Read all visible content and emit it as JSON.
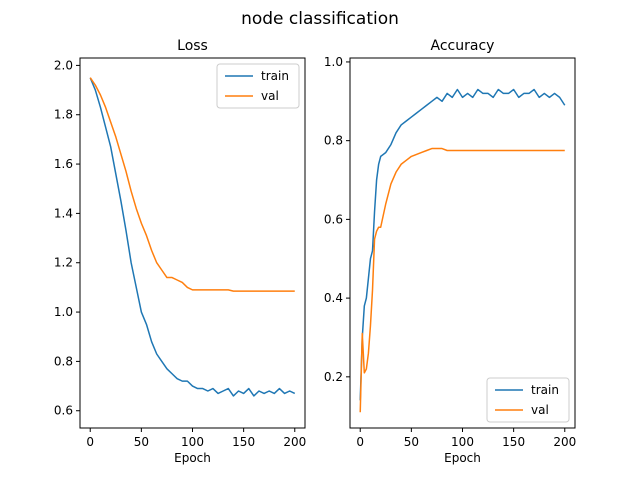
{
  "chart_data": [
    {
      "type": "line",
      "suptitle": "node classification",
      "title": "Loss",
      "xlabel": "Epoch",
      "ylabel": "",
      "xlim": [
        -10,
        210
      ],
      "ylim": [
        0.53,
        2.03
      ],
      "xticks": [
        0,
        50,
        100,
        150,
        200
      ],
      "yticks": [
        0.6,
        0.8,
        1.0,
        1.2,
        1.4,
        1.6,
        1.8,
        2.0
      ],
      "legend": "top-right",
      "series": [
        {
          "name": "train",
          "color": "#1f77b4",
          "x": [
            0,
            5,
            10,
            15,
            20,
            25,
            30,
            35,
            40,
            45,
            50,
            55,
            60,
            65,
            70,
            75,
            80,
            85,
            90,
            95,
            100,
            105,
            110,
            115,
            120,
            125,
            130,
            135,
            140,
            145,
            150,
            155,
            160,
            165,
            170,
            175,
            180,
            185,
            190,
            195,
            200
          ],
          "values": [
            1.95,
            1.9,
            1.83,
            1.75,
            1.67,
            1.56,
            1.45,
            1.33,
            1.2,
            1.1,
            1.0,
            0.95,
            0.88,
            0.83,
            0.8,
            0.77,
            0.75,
            0.73,
            0.72,
            0.72,
            0.7,
            0.69,
            0.69,
            0.68,
            0.69,
            0.67,
            0.68,
            0.69,
            0.66,
            0.68,
            0.67,
            0.69,
            0.66,
            0.68,
            0.67,
            0.68,
            0.67,
            0.69,
            0.67,
            0.68,
            0.67
          ]
        },
        {
          "name": "val",
          "color": "#ff7f0e",
          "x": [
            0,
            5,
            10,
            15,
            20,
            25,
            30,
            35,
            40,
            45,
            50,
            55,
            60,
            65,
            70,
            75,
            80,
            85,
            90,
            95,
            100,
            105,
            110,
            115,
            120,
            125,
            130,
            135,
            140,
            145,
            150,
            155,
            160,
            165,
            170,
            175,
            180,
            185,
            190,
            195,
            200
          ],
          "values": [
            1.95,
            1.92,
            1.88,
            1.83,
            1.77,
            1.71,
            1.64,
            1.57,
            1.49,
            1.42,
            1.36,
            1.31,
            1.25,
            1.2,
            1.17,
            1.14,
            1.14,
            1.13,
            1.12,
            1.1,
            1.09,
            1.09,
            1.09,
            1.09,
            1.09,
            1.09,
            1.09,
            1.09,
            1.085,
            1.085,
            1.085,
            1.085,
            1.085,
            1.085,
            1.085,
            1.085,
            1.085,
            1.085,
            1.085,
            1.085,
            1.085
          ]
        }
      ]
    },
    {
      "type": "line",
      "title": "Accuracy",
      "xlabel": "Epoch",
      "ylabel": "",
      "xlim": [
        -10,
        210
      ],
      "ylim": [
        0.07,
        1.01
      ],
      "xticks": [
        0,
        50,
        100,
        150,
        200
      ],
      "yticks": [
        0.2,
        0.4,
        0.6,
        0.8,
        1.0
      ],
      "legend": "bottom-right",
      "series": [
        {
          "name": "train",
          "color": "#1f77b4",
          "x": [
            0,
            2,
            4,
            6,
            8,
            10,
            12,
            14,
            16,
            18,
            20,
            25,
            30,
            35,
            40,
            45,
            50,
            55,
            60,
            65,
            70,
            75,
            80,
            85,
            90,
            95,
            100,
            105,
            110,
            115,
            120,
            125,
            130,
            135,
            140,
            145,
            150,
            155,
            160,
            165,
            170,
            175,
            180,
            185,
            190,
            195,
            200
          ],
          "values": [
            0.14,
            0.3,
            0.38,
            0.4,
            0.45,
            0.5,
            0.52,
            0.62,
            0.7,
            0.74,
            0.76,
            0.77,
            0.79,
            0.82,
            0.84,
            0.85,
            0.86,
            0.87,
            0.88,
            0.89,
            0.9,
            0.91,
            0.9,
            0.92,
            0.91,
            0.93,
            0.91,
            0.92,
            0.91,
            0.93,
            0.92,
            0.92,
            0.91,
            0.93,
            0.92,
            0.92,
            0.93,
            0.91,
            0.92,
            0.92,
            0.93,
            0.91,
            0.92,
            0.91,
            0.92,
            0.91,
            0.89
          ]
        },
        {
          "name": "val",
          "color": "#ff7f0e",
          "x": [
            0,
            2,
            4,
            6,
            8,
            10,
            12,
            14,
            16,
            18,
            20,
            25,
            30,
            35,
            40,
            45,
            50,
            55,
            60,
            65,
            70,
            75,
            80,
            85,
            90,
            95,
            100,
            105,
            110,
            115,
            120,
            125,
            130,
            135,
            140,
            145,
            150,
            155,
            160,
            165,
            170,
            175,
            180,
            185,
            190,
            195,
            200
          ],
          "values": [
            0.11,
            0.31,
            0.21,
            0.22,
            0.26,
            0.33,
            0.42,
            0.55,
            0.57,
            0.58,
            0.58,
            0.64,
            0.69,
            0.72,
            0.74,
            0.75,
            0.76,
            0.765,
            0.77,
            0.775,
            0.78,
            0.78,
            0.78,
            0.775,
            0.775,
            0.775,
            0.775,
            0.775,
            0.775,
            0.775,
            0.775,
            0.775,
            0.775,
            0.775,
            0.775,
            0.775,
            0.775,
            0.775,
            0.775,
            0.775,
            0.775,
            0.775,
            0.775,
            0.775,
            0.775,
            0.775,
            0.775
          ]
        }
      ]
    }
  ]
}
